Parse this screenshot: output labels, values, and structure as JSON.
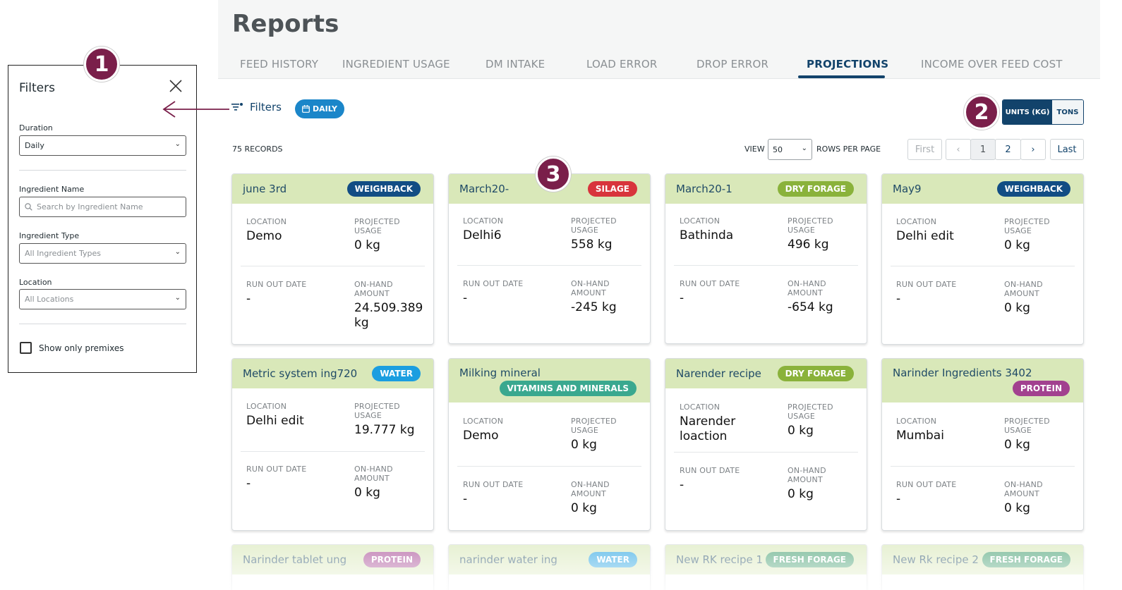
{
  "header": {
    "title": "Reports",
    "tabs": [
      {
        "label": "FEED HISTORY"
      },
      {
        "label": "INGREDIENT USAGE"
      },
      {
        "label": "DM INTAKE"
      },
      {
        "label": "LOAD ERROR"
      },
      {
        "label": "DROP ERROR"
      },
      {
        "label": "PROJECTIONS"
      },
      {
        "label": "INCOME OVER FEED COST"
      }
    ],
    "active_tab": "PROJECTIONS"
  },
  "toolbar": {
    "filters_label": "Filters",
    "duration_chip": "DAILY",
    "units": {
      "selected": "UNITS (KG)",
      "other": "TONS"
    }
  },
  "listing": {
    "records": "75 RECORDS",
    "view_label": "VIEW",
    "rows_value": "50",
    "rows_label": "ROWS PER PAGE",
    "pagination": {
      "first": "First",
      "prev": "‹",
      "pages": [
        "1",
        "2"
      ],
      "current": "1",
      "next": "›",
      "last": "Last"
    }
  },
  "card_labels": {
    "location": "LOCATION",
    "projected": "PROJECTED USAGE",
    "run_out": "RUN OUT DATE",
    "on_hand": "ON-HAND AMOUNT"
  },
  "cards": [
    {
      "name": "june 3rd",
      "badge": "WEIGHBACK",
      "badge_color": "#124d84",
      "location": "Demo",
      "projected": "0 kg",
      "run_out": "-",
      "on_hand": "24.509.389 kg"
    },
    {
      "name": "March20-",
      "badge": "SILAGE",
      "badge_color": "#d8343c",
      "location": "Delhi6",
      "projected": "558 kg",
      "run_out": "-",
      "on_hand": "-245 kg"
    },
    {
      "name": "March20-1",
      "badge": "DRY FORAGE",
      "badge_color": "#8ab23b",
      "location": "Bathinda",
      "projected": "496 kg",
      "run_out": "-",
      "on_hand": "-654 kg"
    },
    {
      "name": "May9",
      "badge": "WEIGHBACK",
      "badge_color": "#124d84",
      "location": "Delhi edit",
      "projected": "0 kg",
      "run_out": "-",
      "on_hand": "0 kg"
    },
    {
      "name": "Metric system ing720",
      "badge": "WATER",
      "badge_color": "#1b9ee0",
      "location": "Delhi edit",
      "projected": "19.777 kg",
      "run_out": "-",
      "on_hand": "0 kg"
    },
    {
      "name": "Milking mineral",
      "badge": "VITAMINS AND MINERALS",
      "badge_color": "#3aa88f",
      "location": "Demo",
      "projected": "0 kg",
      "run_out": "-",
      "on_hand": "0 kg"
    },
    {
      "name": "Narender recipe",
      "badge": "DRY FORAGE",
      "badge_color": "#8ab23b",
      "location": "Narender loaction",
      "projected": "0 kg",
      "run_out": "-",
      "on_hand": "0 kg"
    },
    {
      "name": "Narinder Ingredients 3402",
      "badge": "PROTEIN",
      "badge_color": "#a2418f",
      "location": "Mumbai",
      "projected": "0 kg",
      "run_out": "-",
      "on_hand": "0 kg"
    },
    {
      "name": "Narinder tablet ung",
      "badge": "PROTEIN",
      "badge_color": "#a2418f"
    },
    {
      "name": "narinder water ing",
      "badge": "WATER",
      "badge_color": "#1b9ee0"
    },
    {
      "name": "New RK recipe 1",
      "badge": "FRESH FORAGE",
      "badge_color": "#3f9c6c"
    },
    {
      "name": "New Rk recipe 2",
      "badge": "FRESH FORAGE",
      "badge_color": "#3f9c6c"
    }
  ],
  "filters_panel": {
    "title": "Filters",
    "duration_label": "Duration",
    "duration_value": "Daily",
    "ingredient_name_label": "Ingredient Name",
    "ingredient_name_placeholder": "Search by Ingredient Name",
    "ingredient_type_label": "Ingredient Type",
    "ingredient_type_value": "All Ingredient Types",
    "location_label": "Location",
    "location_value": "All Locations",
    "premixes_label": "Show only premixes",
    "premixes_checked": false
  },
  "annotations": [
    "1",
    "2",
    "3"
  ],
  "colors": {
    "primary": "#12436b",
    "accent_blue": "#1b86c9",
    "card_header": "#d9e8b9",
    "annotation": "#7a1f4a"
  }
}
